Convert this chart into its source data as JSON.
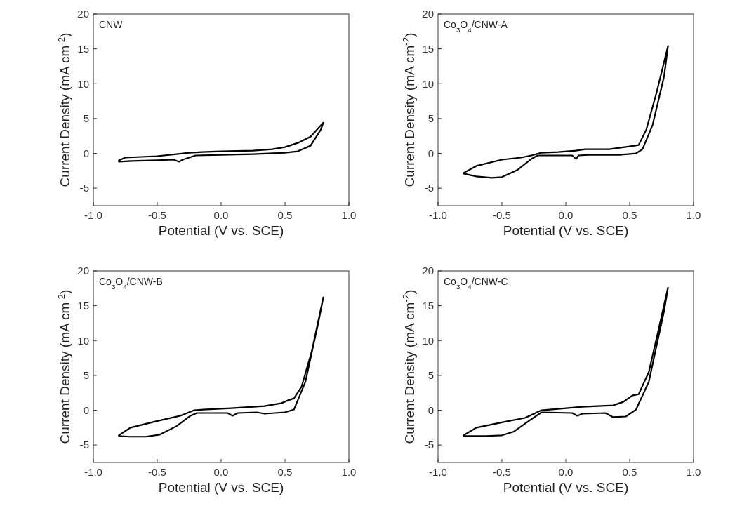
{
  "chart_data": [
    {
      "type": "line",
      "xlabel": "Potential (V vs. SCE)",
      "ylabel": "Current Density (mA cm$^{-2}$)",
      "annotations": [
        "CNW"
      ],
      "xlim": [
        -1,
        1
      ],
      "xticks": [
        {
          "value": -1,
          "label": "-1.0"
        },
        {
          "value": -0.5,
          "label": "-0.5"
        },
        {
          "value": 0,
          "label": "0.0"
        },
        {
          "value": 0.5,
          "label": "0.5"
        },
        {
          "value": 1,
          "label": "1.0"
        }
      ],
      "ylim": [
        -7.5,
        20
      ],
      "yticks": [
        -5,
        0,
        5,
        10,
        15,
        20
      ],
      "line_style": "solid",
      "series": [
        {
          "color": "#000000",
          "x": [
            -0.8,
            -0.75,
            -0.5,
            -0.35,
            -0.25,
            -0.15,
            0,
            0.25,
            0.4,
            0.5,
            0.6,
            0.7,
            0.8,
            0.78,
            0.7,
            0.6,
            0.5,
            0.25,
            0,
            -0.2,
            -0.3,
            -0.33,
            -0.37,
            -0.5,
            -0.7,
            -0.8
          ],
          "values": [
            -1,
            -0.6,
            -0.4,
            -0.1,
            0.1,
            0.2,
            0.3,
            0.4,
            0.6,
            0.9,
            1.5,
            2.4,
            4.4,
            3.4,
            1.1,
            0.3,
            0.1,
            -0.1,
            -0.2,
            -0.3,
            -0.9,
            -1.2,
            -0.9,
            -1,
            -1.1,
            -1.2
          ]
        }
      ]
    },
    {
      "type": "line",
      "xlabel": "Potential (V vs. SCE)",
      "ylabel": "Current Density (mA cm$^{-2}$)",
      "annotations": [
        "Co$_{3}$O$_{4}$/CNW-A"
      ],
      "xlim": [
        -1,
        1
      ],
      "xticks": [
        {
          "value": -1,
          "label": "-1.0"
        },
        {
          "value": -0.5,
          "label": "-0.5"
        },
        {
          "value": 0,
          "label": "0.0"
        },
        {
          "value": 0.5,
          "label": "0.5"
        },
        {
          "value": 1,
          "label": "1.0"
        }
      ],
      "ylim": [
        -7.5,
        20
      ],
      "yticks": [
        -5,
        0,
        5,
        10,
        15,
        20
      ],
      "line_style": "solid",
      "series": [
        {
          "color": "#000000",
          "x": [
            -0.8,
            -0.7,
            -0.5,
            -0.35,
            -0.27,
            -0.19,
            -0.06,
            0.08,
            0.15,
            0.34,
            0.5,
            0.57,
            0.63,
            0.71,
            0.8,
            0.77,
            0.68,
            0.6,
            0.55,
            0.42,
            0.18,
            0.1,
            0.08,
            0.05,
            -0.22,
            -0.27,
            -0.38,
            -0.5,
            -0.58,
            -0.7,
            -0.8
          ],
          "values": [
            -2.8,
            -1.8,
            -0.9,
            -0.6,
            -0.3,
            0.1,
            0.2,
            0.4,
            0.6,
            0.6,
            1,
            1.2,
            3.4,
            8.7,
            15.4,
            11.1,
            4.1,
            0.6,
            0,
            -0.2,
            -0.2,
            -0.3,
            -0.8,
            -0.3,
            -0.3,
            -0.8,
            -2.4,
            -3.4,
            -3.5,
            -3.3,
            -2.9
          ]
        }
      ]
    },
    {
      "type": "line",
      "xlabel": "Potential (V vs. SCE)",
      "ylabel": "Current Density (mA cm$^{-2}$)",
      "annotations": [
        "Co$_{3}$O$_{4}$/CNW-B"
      ],
      "xlim": [
        -1,
        1
      ],
      "xticks": [
        {
          "value": -1,
          "label": "-1.0"
        },
        {
          "value": -0.5,
          "label": "-0.5"
        },
        {
          "value": 0,
          "label": "0.0"
        },
        {
          "value": 0.5,
          "label": "0.5"
        },
        {
          "value": 1,
          "label": "1.0"
        }
      ],
      "ylim": [
        -7.5,
        20
      ],
      "yticks": [
        -5,
        0,
        5,
        10,
        15,
        20
      ],
      "line_style": "solid",
      "series": [
        {
          "color": "#000000",
          "x": [
            -0.8,
            -0.71,
            -0.51,
            -0.32,
            -0.21,
            -0.14,
            0.08,
            0.34,
            0.47,
            0.52,
            0.57,
            0.63,
            0.71,
            0.8,
            0.76,
            0.66,
            0.57,
            0.5,
            0.34,
            0.28,
            0.13,
            0.09,
            0.05,
            -0.19,
            -0.24,
            -0.35,
            -0.48,
            -0.59,
            -0.72,
            -0.8
          ],
          "values": [
            -3.6,
            -2.5,
            -1.6,
            -0.8,
            0,
            0.1,
            0.3,
            0.6,
            1,
            1.4,
            1.7,
            3.4,
            8.5,
            16.2,
            12.5,
            4.1,
            0.1,
            -0.3,
            -0.5,
            -0.3,
            -0.4,
            -0.8,
            -0.4,
            -0.4,
            -0.8,
            -2.3,
            -3.5,
            -3.8,
            -3.8,
            -3.7
          ]
        }
      ]
    },
    {
      "type": "line",
      "xlabel": "Potential (V vs. SCE)",
      "ylabel": "Current Density (mA cm$^{-2}$)",
      "annotations": [
        "Co$_{3}$O$_{4}$/CNW-C"
      ],
      "xlim": [
        -1,
        1
      ],
      "xticks": [
        {
          "value": -1,
          "label": "-1.0"
        },
        {
          "value": -0.5,
          "label": "-0.5"
        },
        {
          "value": 0,
          "label": "0.0"
        },
        {
          "value": 0.5,
          "label": "0.5"
        },
        {
          "value": 1,
          "label": "1.0"
        }
      ],
      "ylim": [
        -7.5,
        20
      ],
      "yticks": [
        -5,
        0,
        5,
        10,
        15,
        20
      ],
      "line_style": "solid",
      "series": [
        {
          "color": "#000000",
          "x": [
            -0.8,
            -0.7,
            -0.46,
            -0.32,
            -0.19,
            -0.06,
            0.13,
            0.37,
            0.45,
            0.52,
            0.57,
            0.65,
            0.73,
            0.8,
            0.77,
            0.65,
            0.55,
            0.47,
            0.37,
            0.31,
            0.13,
            0.09,
            0.05,
            -0.19,
            -0.27,
            -0.41,
            -0.5,
            -0.62,
            -0.8
          ],
          "values": [
            -3.6,
            -2.5,
            -1.6,
            -1.1,
            0,
            0.2,
            0.5,
            0.7,
            1.2,
            2.1,
            2.3,
            5.5,
            11.9,
            17.6,
            14.3,
            4.1,
            0.1,
            -0.9,
            -1,
            -0.4,
            -0.5,
            -0.8,
            -0.4,
            -0.3,
            -1.3,
            -3.1,
            -3.6,
            -3.7,
            -3.7
          ]
        }
      ]
    }
  ]
}
